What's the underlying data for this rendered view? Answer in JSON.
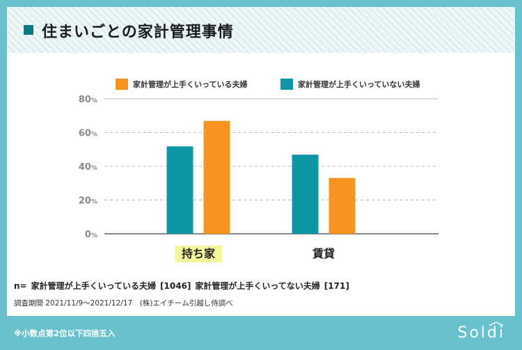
{
  "header": {
    "title": "住まいごとの家計管理事情"
  },
  "colors": {
    "series_good": "#f7931e",
    "series_bad": "#0d97a4",
    "highlight": "#f4f79a",
    "axis": "#888888",
    "grid": "#bbbbbb"
  },
  "chart_data": {
    "type": "bar",
    "categories": [
      "持ち家",
      "賃貸"
    ],
    "series": [
      {
        "name": "家計管理が上手くいっていない夫婦",
        "values": [
          51.8,
          46.9
        ]
      },
      {
        "name": "家計管理が上手くいっている夫婦",
        "values": [
          66.9,
          33.1
        ]
      }
    ],
    "legend_order": [
      "家計管理が上手くいっている夫婦",
      "家計管理が上手くいっていない夫婦"
    ],
    "y_ticks": [
      "0",
      "20",
      "40",
      "60",
      "80"
    ],
    "y_unit": "%",
    "ylim": [
      0,
      80
    ],
    "grid": true,
    "legend": "top-center"
  },
  "notes": {
    "n_prefix": "n=",
    "n_group1": "家計管理が上手くいっている夫婦",
    "n_value1": "[1046]",
    "n_group2": "家計管理が上手くいってない夫婦",
    "n_value2": "[171]",
    "period": "調査期間 2021/11/9〜2021/12/17　(株)エイチーム引越し侍調べ"
  },
  "footer": {
    "note": "※小数点第2位以下四捨五入",
    "brand": "Soldi"
  }
}
